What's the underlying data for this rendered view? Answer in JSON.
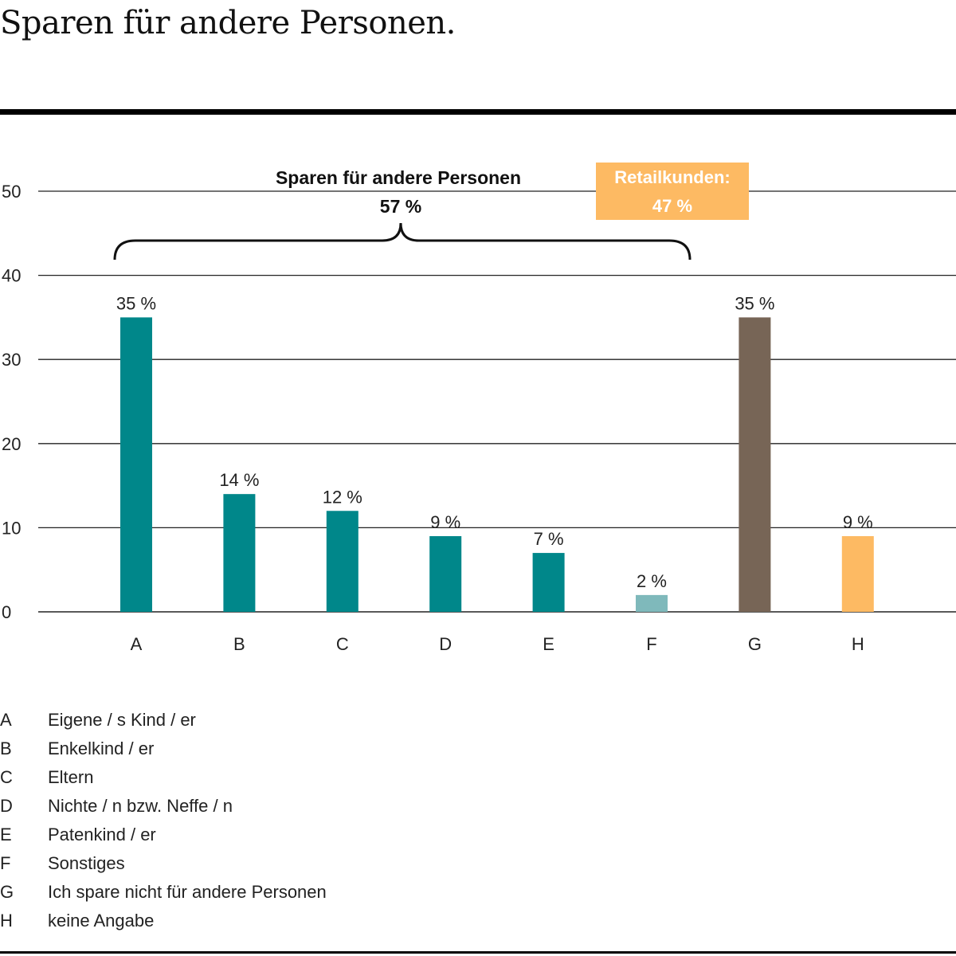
{
  "title": "Sparen für andere Personen.",
  "colors": {
    "teal": "#00878A",
    "teal_light": "#7FB9BB",
    "brown": "#776556",
    "orange": "#FDBA63",
    "grid": "#222222"
  },
  "chart_data": {
    "type": "bar",
    "categories": [
      "A",
      "B",
      "C",
      "D",
      "E",
      "F",
      "G",
      "H"
    ],
    "values": [
      35,
      14,
      12,
      9,
      7,
      2,
      35,
      9
    ],
    "value_labels": [
      "35 %",
      "14 %",
      "12 %",
      "9 %",
      "7 %",
      "2 %",
      "35 %",
      "9 %"
    ],
    "bar_colors": [
      "teal",
      "teal",
      "teal",
      "teal",
      "teal",
      "teal_light",
      "brown",
      "orange"
    ],
    "ylim": [
      0,
      50
    ],
    "yticks": [
      0,
      10,
      20,
      30,
      40,
      50
    ],
    "grid": true,
    "annotations": {
      "bracket": {
        "label": "Sparen für andere Personen",
        "value": "57 %",
        "from": "A",
        "to": "F"
      },
      "retail_box": {
        "label": "Retailkunden:",
        "value": "47 %"
      }
    }
  },
  "legend": [
    {
      "key": "A",
      "text": "Eigene / s Kind / er"
    },
    {
      "key": "B",
      "text": "Enkelkind / er"
    },
    {
      "key": "C",
      "text": "Eltern"
    },
    {
      "key": "D",
      "text": "Nichte / n bzw. Neffe / n"
    },
    {
      "key": "E",
      "text": "Patenkind / er"
    },
    {
      "key": "F",
      "text": "Sonstiges"
    },
    {
      "key": "G",
      "text": "Ich spare nicht für andere Personen"
    },
    {
      "key": "H",
      "text": "keine Angabe"
    }
  ]
}
